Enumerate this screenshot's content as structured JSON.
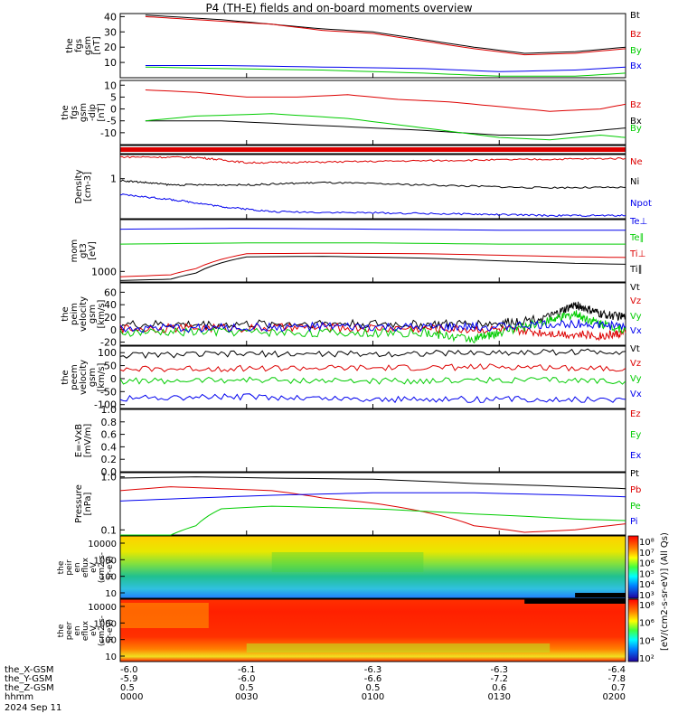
{
  "title": "P4 (TH-E) fields and on-board moments overview",
  "date_label": "2024 Sep 11",
  "colors": {
    "black": "#000000",
    "red": "#dd0000",
    "green": "#00cc00",
    "blue": "#0000ee"
  },
  "ephemeris": {
    "rows": [
      {
        "label": "the_X-GSM",
        "values": [
          "-6.0",
          "-6.1",
          "-6.3",
          "-6.3",
          "-6.4"
        ]
      },
      {
        "label": "the_Y-GSM",
        "values": [
          "-5.9",
          "-6.0",
          "-6.6",
          "-7.2",
          "-7.8"
        ]
      },
      {
        "label": "the_Z-GSM",
        "values": [
          "0.5",
          "0.5",
          "0.5",
          "0.6",
          "0.7"
        ]
      },
      {
        "label": "hhmm",
        "values": [
          "0000",
          "0030",
          "0100",
          "0130",
          "0200"
        ]
      }
    ]
  },
  "chart_data": [
    {
      "id": "fgs_gsm",
      "type": "line",
      "ylabel": [
        "the",
        "fgs",
        "gsm",
        "[nT]"
      ],
      "ylim": [
        0,
        42
      ],
      "yticks": [
        "40",
        "30",
        "20",
        "10"
      ],
      "legend": [
        "Bt",
        "Bz",
        "By",
        "Bx"
      ],
      "series": [
        {
          "name": "Bt",
          "color": "black",
          "x": [
            0.1,
            0.2,
            0.4,
            0.6,
            0.8,
            1.0,
            1.2,
            1.4,
            1.6,
            1.8,
            2.0
          ],
          "y": [
            41,
            40,
            38,
            35,
            32,
            30,
            25,
            20,
            16,
            17,
            20
          ]
        },
        {
          "name": "Bz",
          "color": "red",
          "x": [
            0.1,
            0.2,
            0.4,
            0.6,
            0.8,
            1.0,
            1.2,
            1.4,
            1.6,
            1.8,
            2.0
          ],
          "y": [
            40,
            39,
            37,
            35,
            31,
            29,
            24,
            19,
            15,
            16,
            19
          ]
        },
        {
          "name": "By",
          "color": "green",
          "x": [
            0.1,
            0.4,
            0.8,
            1.2,
            1.5,
            1.8,
            2.0
          ],
          "y": [
            7,
            6,
            5,
            3,
            1,
            1,
            3
          ]
        },
        {
          "name": "Bx",
          "color": "blue",
          "x": [
            0.1,
            0.4,
            0.8,
            1.2,
            1.5,
            1.8,
            2.0
          ],
          "y": [
            8,
            8,
            7,
            6,
            4,
            5,
            7
          ]
        }
      ]
    },
    {
      "id": "fgs_gsm_dt",
      "type": "line",
      "ylabel": [
        "the",
        "fgs",
        "gsm",
        "-dip",
        "[nT]"
      ],
      "ylim": [
        -15,
        12
      ],
      "yticks": [
        "10",
        "5",
        "0",
        "-5",
        "-10"
      ],
      "legend": [
        "Bz",
        "Bx",
        "By"
      ],
      "series": [
        {
          "name": "Bz",
          "color": "red",
          "x": [
            0.1,
            0.3,
            0.5,
            0.7,
            0.9,
            1.1,
            1.3,
            1.5,
            1.7,
            1.9,
            2.0
          ],
          "y": [
            8,
            7,
            5,
            5,
            6,
            4,
            3,
            1,
            -1,
            0,
            2
          ]
        },
        {
          "name": "Bx",
          "color": "black",
          "x": [
            0.1,
            0.4,
            0.8,
            1.2,
            1.5,
            1.7,
            1.9,
            2.0
          ],
          "y": [
            -5,
            -5,
            -7,
            -9,
            -11,
            -11,
            -9,
            -8
          ]
        },
        {
          "name": "By",
          "color": "green",
          "x": [
            0.1,
            0.3,
            0.6,
            0.9,
            1.2,
            1.5,
            1.7,
            1.9,
            2.0
          ],
          "y": [
            -5,
            -3,
            -2,
            -4,
            -8,
            -12,
            -13,
            -11,
            -12
          ]
        }
      ]
    },
    {
      "id": "flag_bar",
      "type": "bar",
      "color": "red"
    },
    {
      "id": "density",
      "type": "line",
      "ylabel": [
        "Density",
        "[cm-3]"
      ],
      "ylim_log": [
        0.1,
        4
      ],
      "yticks": [
        "1"
      ],
      "legend": [
        "Ne",
        "Ni",
        "Npot"
      ],
      "series": [
        {
          "name": "Ne",
          "color": "red",
          "x": [
            0.0,
            0.3,
            0.5,
            0.8,
            1.2,
            1.6,
            2.0
          ],
          "y": [
            3.5,
            3.4,
            2.5,
            2.6,
            2.8,
            3.0,
            3.2
          ]
        },
        {
          "name": "Ni",
          "color": "black",
          "x": [
            0.0,
            0.2,
            0.5,
            0.8,
            1.2,
            1.6,
            2.0
          ],
          "y": [
            0.9,
            0.7,
            0.7,
            0.8,
            0.7,
            0.6,
            0.6
          ]
        },
        {
          "name": "Npot",
          "color": "blue",
          "x": [
            0.0,
            0.2,
            0.4,
            0.6,
            1.0,
            1.4,
            1.7,
            2.0
          ],
          "y": [
            0.4,
            0.3,
            0.2,
            0.15,
            0.14,
            0.13,
            0.12,
            0.12
          ]
        }
      ]
    },
    {
      "id": "temperature",
      "type": "line",
      "ylabel": [
        "mom",
        "gt3",
        "[eV]"
      ],
      "ylim_log": [
        500,
        30000
      ],
      "yticks": [
        "1000"
      ],
      "legend": [
        "Te⊥",
        "Te∥",
        "Ti⊥",
        "Ti∥"
      ],
      "series": [
        {
          "name": "Te⊥",
          "color": "blue",
          "x": [
            0.0,
            0.5,
            1.0,
            1.5,
            2.0
          ],
          "y": [
            16000,
            17000,
            16000,
            15000,
            15000
          ]
        },
        {
          "name": "Te∥",
          "color": "green",
          "x": [
            0.0,
            0.5,
            1.0,
            1.5,
            2.0
          ],
          "y": [
            6000,
            6500,
            6500,
            6000,
            6000
          ]
        },
        {
          "name": "Ti⊥",
          "color": "red",
          "x": [
            0.0,
            0.2,
            0.3,
            0.5,
            0.8,
            1.2,
            1.5,
            1.8,
            2.0
          ],
          "y": [
            700,
            800,
            1200,
            3200,
            3300,
            3200,
            2900,
            2600,
            2500
          ]
        },
        {
          "name": "Ti∥",
          "color": "black",
          "x": [
            0.0,
            0.2,
            0.3,
            0.5,
            0.8,
            1.2,
            1.5,
            1.8,
            2.0
          ],
          "y": [
            550,
            600,
            900,
            2600,
            2700,
            2400,
            2000,
            1700,
            1600
          ]
        }
      ]
    },
    {
      "id": "peim_velocity",
      "type": "line",
      "ylabel": [
        "the",
        "peim",
        "velocity",
        "gsm",
        "[km/s]"
      ],
      "ylim": [
        -25,
        75
      ],
      "yticks": [
        "60",
        "40",
        "20",
        "0",
        "-20"
      ],
      "legend": [
        "Vt",
        "Vz",
        "Vy",
        "Vx"
      ],
      "series": [
        {
          "name": "Vt",
          "color": "black",
          "x": [
            0.0,
            0.4,
            0.8,
            1.2,
            1.5,
            1.7,
            1.8,
            1.9,
            2.0
          ],
          "y": [
            8,
            8,
            10,
            8,
            10,
            20,
            40,
            25,
            20
          ]
        },
        {
          "name": "Vz",
          "color": "red",
          "x": [
            0.0,
            0.4,
            0.8,
            1.2,
            1.5,
            1.7,
            1.9,
            2.0
          ],
          "y": [
            2,
            3,
            3,
            2,
            0,
            -5,
            -10,
            -5
          ]
        },
        {
          "name": "Vy",
          "color": "green",
          "x": [
            0.0,
            0.4,
            0.8,
            1.2,
            1.4,
            1.5,
            1.7,
            1.8,
            1.9,
            2.0
          ],
          "y": [
            -5,
            -3,
            -5,
            -5,
            -15,
            -5,
            15,
            25,
            10,
            0
          ]
        },
        {
          "name": "Vx",
          "color": "blue",
          "x": [
            0.0,
            0.4,
            0.8,
            1.2,
            1.5,
            1.8,
            2.0
          ],
          "y": [
            2,
            3,
            5,
            3,
            5,
            10,
            5
          ]
        }
      ]
    },
    {
      "id": "peem_velocity",
      "type": "line",
      "ylabel": [
        "the",
        "peem",
        "velocity",
        "gsm",
        "[km/s]"
      ],
      "ylim": [
        -115,
        125
      ],
      "yticks": [
        "100",
        "50",
        "0",
        "-50",
        "-100"
      ],
      "legend": [
        "Vt",
        "Vz",
        "Vy",
        "Vx"
      ],
      "series": [
        {
          "name": "Vt",
          "color": "black",
          "x": [
            0.0,
            0.5,
            1.0,
            1.5,
            2.0
          ],
          "y": [
            90,
            95,
            95,
            100,
            105
          ]
        },
        {
          "name": "Vz",
          "color": "red",
          "x": [
            0.0,
            0.5,
            1.0,
            1.5,
            2.0
          ],
          "y": [
            35,
            40,
            40,
            45,
            40
          ]
        },
        {
          "name": "Vy",
          "color": "green",
          "x": [
            0.0,
            0.5,
            1.0,
            1.5,
            2.0
          ],
          "y": [
            -10,
            -5,
            -10,
            -5,
            -10
          ]
        },
        {
          "name": "Vx",
          "color": "blue",
          "x": [
            0.0,
            0.5,
            1.0,
            1.5,
            2.0
          ],
          "y": [
            -75,
            -70,
            -80,
            -80,
            -80
          ]
        }
      ]
    },
    {
      "id": "efield",
      "type": "line",
      "ylabel": [
        "E=-VxB",
        "[mV/m]"
      ],
      "ylim": [
        0,
        1.0
      ],
      "yticks": [
        "1.0",
        "0.8",
        "0.6",
        "0.4",
        "0.2",
        "0.0"
      ],
      "legend": [
        "Ez",
        "Ey",
        "Ex"
      ],
      "series": []
    },
    {
      "id": "pressure",
      "type": "line",
      "ylabel": [
        "Pressure",
        "[nPa]"
      ],
      "ylim_log": [
        0.08,
        1.2
      ],
      "yticks": [
        "1.0",
        "0.1"
      ],
      "legend": [
        "Pt",
        "Pb",
        "Pe",
        "Pi"
      ],
      "series": [
        {
          "name": "Pt",
          "color": "black",
          "x": [
            0.0,
            0.3,
            0.6,
            1.0,
            1.4,
            1.8,
            2.0
          ],
          "y": [
            0.95,
            1.0,
            0.95,
            0.9,
            0.75,
            0.65,
            0.6
          ]
        },
        {
          "name": "Pb",
          "color": "red",
          "x": [
            0.0,
            0.2,
            0.4,
            0.6,
            0.8,
            1.0,
            1.2,
            1.4,
            1.6,
            1.8,
            2.0
          ],
          "y": [
            0.55,
            0.65,
            0.6,
            0.55,
            0.4,
            0.32,
            0.22,
            0.12,
            0.09,
            0.1,
            0.13
          ]
        },
        {
          "name": "Pe",
          "color": "green",
          "x": [
            0.0,
            0.2,
            0.3,
            0.4,
            0.6,
            1.0,
            1.4,
            1.8,
            2.0
          ],
          "y": [
            0.08,
            0.08,
            0.12,
            0.25,
            0.28,
            0.25,
            0.2,
            0.16,
            0.15
          ]
        },
        {
          "name": "Pi",
          "color": "blue",
          "x": [
            0.0,
            0.3,
            0.6,
            1.0,
            1.4,
            1.8,
            2.0
          ],
          "y": [
            0.35,
            0.4,
            0.45,
            0.5,
            0.5,
            0.45,
            0.42
          ]
        }
      ]
    },
    {
      "id": "peir_eflux",
      "type": "heatmap",
      "ylabel": [
        "the",
        "peir",
        "en",
        "eflux",
        "eV",
        "(cm2-s-",
        "sr-eV)"
      ],
      "yticks": [
        "10000",
        "1000",
        "100",
        "10"
      ],
      "colorbar_ticks": [
        "10⁸",
        "10⁷",
        "10⁶",
        "10⁵",
        "10⁴",
        "10³"
      ]
    },
    {
      "id": "peer_eflux",
      "type": "heatmap",
      "ylabel": [
        "the",
        "peer",
        "en",
        "eflux",
        "eV",
        "(cm2-s-",
        "sr-eV)"
      ],
      "yticks": [
        "10000",
        "1000",
        "100",
        "10"
      ],
      "colorbar_ticks": [
        "10⁸",
        "10⁶",
        "10⁴",
        "10²"
      ]
    }
  ],
  "colorbar_label": "[eV/(cm2-s-sr-eV)] (All Qs)"
}
